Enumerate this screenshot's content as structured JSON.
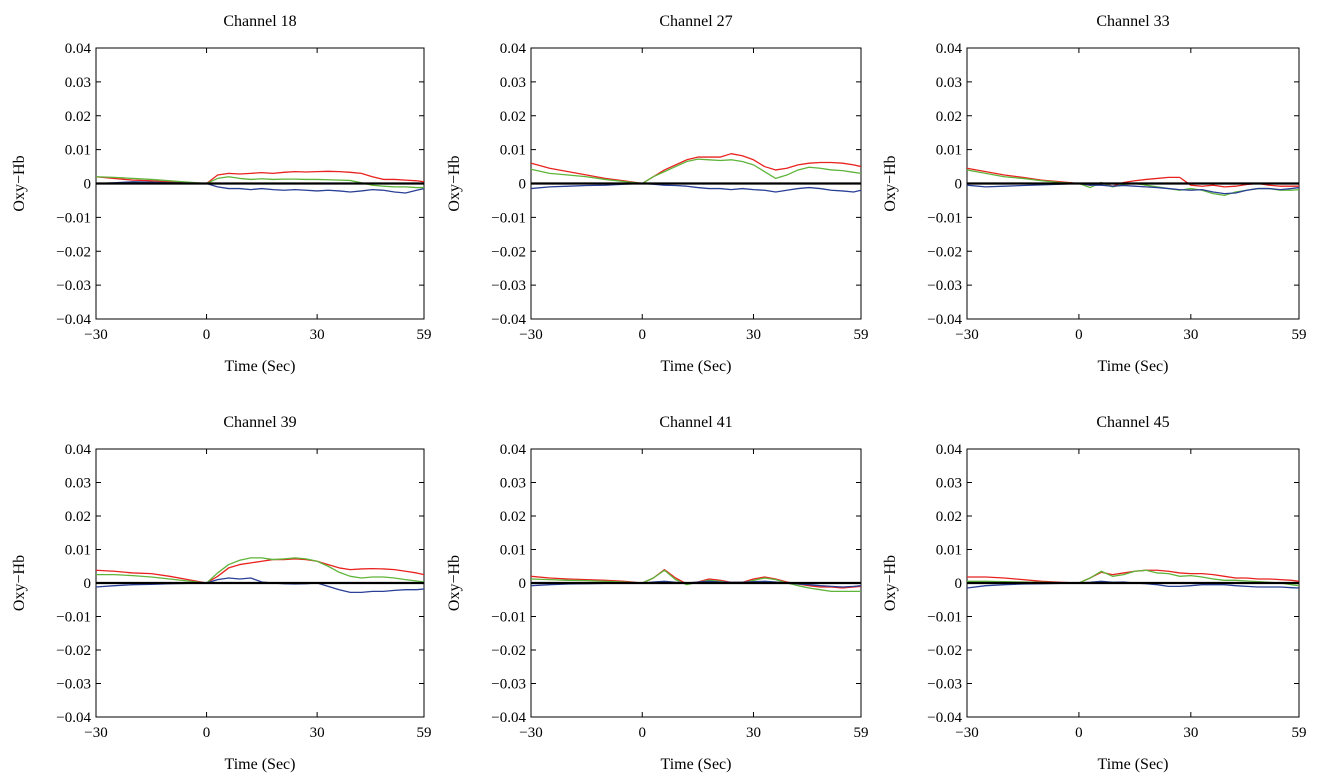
{
  "colors": {
    "red": "#e8231f",
    "green": "#5fb43a",
    "blue": "#2a3f96",
    "zero_line": "#000000"
  },
  "chart_data": [
    {
      "type": "line",
      "title": "Channel 18",
      "xlabel": "Time (Sec)",
      "ylabel": "Oxy−Hb",
      "xlim": [
        -30,
        59
      ],
      "ylim": [
        -0.04,
        0.04
      ],
      "xticks": [
        -30,
        0,
        30,
        59
      ],
      "xtick_labels": [
        "−30",
        "0",
        "30",
        "59"
      ],
      "yticks": [
        0.04,
        0.03,
        0.02,
        0.01,
        0,
        -0.01,
        -0.02,
        -0.03,
        -0.04
      ],
      "ytick_labels": [
        "0.04",
        "0.03",
        "0.02",
        "0.01",
        "0",
        "−0.01",
        "−0.02",
        "−0.03",
        "−0.04"
      ],
      "x": [
        -30,
        -25,
        -20,
        -15,
        -10,
        -5,
        0,
        3,
        6,
        9,
        12,
        15,
        18,
        21,
        24,
        27,
        30,
        33,
        36,
        39,
        42,
        45,
        48,
        51,
        54,
        57,
        59
      ],
      "series": [
        {
          "color": "#e8231f",
          "values": [
            0.002,
            0.0015,
            0.001,
            0.0008,
            0.0005,
            0.0003,
            0,
            0.0025,
            0.003,
            0.0028,
            0.003,
            0.0032,
            0.003,
            0.0033,
            0.0035,
            0.0034,
            0.0035,
            0.0036,
            0.0035,
            0.0033,
            0.003,
            0.002,
            0.0012,
            0.0012,
            0.001,
            0.0008,
            0.0005
          ]
        },
        {
          "color": "#5fb43a",
          "values": [
            0.002,
            0.0018,
            0.0015,
            0.0012,
            0.0008,
            0.0004,
            0,
            0.0015,
            0.002,
            0.0015,
            0.0012,
            0.0014,
            0.0012,
            0.0013,
            0.0013,
            0.0012,
            0.0012,
            0.0011,
            0.001,
            0.0009,
            0.0002,
            -0.0005,
            -0.0008,
            -0.001,
            -0.001,
            -0.0012,
            -0.0012
          ]
        },
        {
          "color": "#2a3f96",
          "values": [
            0,
            0.0002,
            0.0005,
            0.0004,
            0.0002,
            0.0001,
            0,
            -0.001,
            -0.0015,
            -0.0015,
            -0.0018,
            -0.0015,
            -0.0018,
            -0.002,
            -0.0018,
            -0.002,
            -0.0022,
            -0.002,
            -0.0022,
            -0.0025,
            -0.0022,
            -0.0018,
            -0.002,
            -0.0025,
            -0.0028,
            -0.002,
            -0.0015
          ]
        }
      ]
    },
    {
      "type": "line",
      "title": "Channel 27",
      "xlabel": "Time (Sec)",
      "ylabel": "Oxy−Hb",
      "xlim": [
        -30,
        59
      ],
      "ylim": [
        -0.04,
        0.04
      ],
      "xticks": [
        -30,
        0,
        30,
        59
      ],
      "xtick_labels": [
        "−30",
        "0",
        "30",
        "59"
      ],
      "yticks": [
        0.04,
        0.03,
        0.02,
        0.01,
        0,
        -0.01,
        -0.02,
        -0.03,
        -0.04
      ],
      "ytick_labels": [
        "0.04",
        "0.03",
        "0.02",
        "0.01",
        "0",
        "−0.01",
        "−0.02",
        "−0.03",
        "−0.04"
      ],
      "x": [
        -30,
        -25,
        -20,
        -15,
        -10,
        -5,
        0,
        3,
        6,
        9,
        12,
        15,
        18,
        21,
        24,
        27,
        30,
        33,
        36,
        39,
        42,
        45,
        48,
        51,
        54,
        57,
        59
      ],
      "series": [
        {
          "color": "#e8231f",
          "values": [
            0.006,
            0.0045,
            0.0035,
            0.0025,
            0.0015,
            0.0008,
            0,
            0.002,
            0.004,
            0.0055,
            0.007,
            0.0078,
            0.0078,
            0.0078,
            0.0088,
            0.0082,
            0.007,
            0.005,
            0.004,
            0.0045,
            0.0055,
            0.006,
            0.0062,
            0.0062,
            0.006,
            0.0055,
            0.005
          ]
        },
        {
          "color": "#5fb43a",
          "values": [
            0.0042,
            0.003,
            0.0025,
            0.002,
            0.0012,
            0.0006,
            0,
            0.002,
            0.0035,
            0.005,
            0.0065,
            0.0072,
            0.007,
            0.0068,
            0.007,
            0.0065,
            0.0055,
            0.0035,
            0.0015,
            0.0025,
            0.004,
            0.0048,
            0.0045,
            0.004,
            0.0038,
            0.0033,
            0.003
          ]
        },
        {
          "color": "#2a3f96",
          "values": [
            -0.0015,
            -0.001,
            -0.0008,
            -0.0006,
            -0.0005,
            -0.0002,
            0,
            -0.0002,
            -0.0005,
            -0.0006,
            -0.0008,
            -0.0012,
            -0.0015,
            -0.0015,
            -0.0018,
            -0.0015,
            -0.0018,
            -0.002,
            -0.0025,
            -0.002,
            -0.0015,
            -0.0012,
            -0.0015,
            -0.002,
            -0.0022,
            -0.0025,
            -0.002
          ]
        }
      ]
    },
    {
      "type": "line",
      "title": "Channel 33",
      "xlabel": "Time (Sec)",
      "ylabel": "Oxy−Hb",
      "xlim": [
        -30,
        59
      ],
      "ylim": [
        -0.04,
        0.04
      ],
      "xticks": [
        -30,
        0,
        30,
        59
      ],
      "xtick_labels": [
        "−30",
        "0",
        "30",
        "59"
      ],
      "yticks": [
        0.04,
        0.03,
        0.02,
        0.01,
        0,
        -0.01,
        -0.02,
        -0.03,
        -0.04
      ],
      "ytick_labels": [
        "0.04",
        "0.03",
        "0.02",
        "0.01",
        "0",
        "−0.01",
        "−0.02",
        "−0.03",
        "−0.04"
      ],
      "x": [
        -30,
        -25,
        -20,
        -15,
        -10,
        -5,
        0,
        3,
        6,
        9,
        12,
        15,
        18,
        21,
        24,
        27,
        30,
        33,
        36,
        39,
        42,
        45,
        48,
        51,
        54,
        57,
        59
      ],
      "series": [
        {
          "color": "#e8231f",
          "values": [
            0.0045,
            0.0035,
            0.0025,
            0.0018,
            0.001,
            0.0005,
            0,
            -0.0005,
            0.0002,
            -0.0008,
            0.0003,
            0.0008,
            0.0012,
            0.0015,
            0.0018,
            0.0018,
            -0.0005,
            -0.0008,
            -0.0005,
            -0.001,
            -0.0008,
            -0.0003,
            0,
            -0.0005,
            -0.0008,
            -0.0008,
            -0.0008
          ]
        },
        {
          "color": "#5fb43a",
          "values": [
            0.004,
            0.003,
            0.002,
            0.0015,
            0.0008,
            0.0003,
            0,
            -0.0012,
            0.0003,
            -0.001,
            -0.0003,
            0,
            -0.0005,
            -0.001,
            -0.0015,
            -0.002,
            -0.0015,
            -0.002,
            -0.003,
            -0.0035,
            -0.0025,
            -0.002,
            -0.0015,
            -0.0015,
            -0.002,
            -0.002,
            -0.0018
          ]
        },
        {
          "color": "#2a3f96",
          "values": [
            -0.0005,
            -0.001,
            -0.0008,
            -0.0006,
            -0.0004,
            -0.0002,
            0,
            -0.0005,
            -0.0005,
            -0.0008,
            -0.0006,
            -0.0008,
            -0.001,
            -0.0012,
            -0.0015,
            -0.0018,
            -0.002,
            -0.0018,
            -0.0025,
            -0.003,
            -0.0028,
            -0.002,
            -0.0015,
            -0.0015,
            -0.0018,
            -0.0015,
            -0.0012
          ]
        }
      ]
    },
    {
      "type": "line",
      "title": "Channel 39",
      "xlabel": "Time (Sec)",
      "ylabel": "Oxy−Hb",
      "xlim": [
        -30,
        59
      ],
      "ylim": [
        -0.04,
        0.04
      ],
      "xticks": [
        -30,
        0,
        30,
        59
      ],
      "xtick_labels": [
        "−30",
        "0",
        "30",
        "59"
      ],
      "yticks": [
        0.04,
        0.03,
        0.02,
        0.01,
        0,
        -0.01,
        -0.02,
        -0.03,
        -0.04
      ],
      "ytick_labels": [
        "0.04",
        "0.03",
        "0.02",
        "0.01",
        "0",
        "−0.01",
        "−0.02",
        "−0.03",
        "−0.04"
      ],
      "x": [
        -30,
        -25,
        -20,
        -15,
        -10,
        -5,
        0,
        3,
        6,
        9,
        12,
        15,
        18,
        21,
        24,
        27,
        30,
        33,
        36,
        39,
        42,
        45,
        48,
        51,
        54,
        57,
        59
      ],
      "series": [
        {
          "color": "#e8231f",
          "values": [
            0.0038,
            0.0035,
            0.003,
            0.0028,
            0.002,
            0.001,
            0,
            0.002,
            0.0045,
            0.0055,
            0.006,
            0.0065,
            0.007,
            0.007,
            0.0072,
            0.007,
            0.0065,
            0.0055,
            0.0045,
            0.004,
            0.0042,
            0.0043,
            0.0042,
            0.004,
            0.0035,
            0.003,
            0.0025
          ]
        },
        {
          "color": "#5fb43a",
          "values": [
            0.0025,
            0.0025,
            0.0022,
            0.0018,
            0.0012,
            0.0006,
            0,
            0.003,
            0.0055,
            0.0068,
            0.0075,
            0.0075,
            0.007,
            0.0072,
            0.0075,
            0.0072,
            0.0065,
            0.005,
            0.0032,
            0.002,
            0.0015,
            0.0018,
            0.0018,
            0.0015,
            0.001,
            0.0006,
            0.0003
          ]
        },
        {
          "color": "#2a3f96",
          "values": [
            -0.0012,
            -0.0008,
            -0.0005,
            -0.0004,
            -0.0002,
            -0.0001,
            0,
            0.001,
            0.0015,
            0.0012,
            0.0015,
            0.0003,
            0,
            -0.0002,
            -0.0003,
            -0.0002,
            0,
            -0.001,
            -0.002,
            -0.0028,
            -0.0028,
            -0.0025,
            -0.0025,
            -0.0022,
            -0.002,
            -0.002,
            -0.0018
          ]
        }
      ]
    },
    {
      "type": "line",
      "title": "Channel 41",
      "xlabel": "Time (Sec)",
      "ylabel": "Oxy−Hb",
      "xlim": [
        -30,
        59
      ],
      "ylim": [
        -0.04,
        0.04
      ],
      "xticks": [
        -30,
        0,
        30,
        59
      ],
      "xtick_labels": [
        "−30",
        "0",
        "30",
        "59"
      ],
      "yticks": [
        0.04,
        0.03,
        0.02,
        0.01,
        0,
        -0.01,
        -0.02,
        -0.03,
        -0.04
      ],
      "ytick_labels": [
        "0.04",
        "0.03",
        "0.02",
        "0.01",
        "0",
        "−0.01",
        "−0.02",
        "−0.03",
        "−0.04"
      ],
      "x": [
        -30,
        -25,
        -20,
        -15,
        -10,
        -5,
        0,
        3,
        6,
        9,
        12,
        15,
        18,
        21,
        24,
        27,
        30,
        33,
        36,
        39,
        42,
        45,
        48,
        51,
        54,
        57,
        59
      ],
      "series": [
        {
          "color": "#e8231f",
          "values": [
            0.002,
            0.0015,
            0.0012,
            0.001,
            0.0008,
            0.0005,
            0,
            0.0015,
            0.004,
            0.0015,
            -0.0003,
            0.0003,
            0.0012,
            0.0008,
            0.0002,
            0.0002,
            0.0012,
            0.0018,
            0.0012,
            0.0003,
            -0.0003,
            -0.0008,
            -0.0012,
            -0.0012,
            -0.0015,
            -0.0012,
            -0.001
          ]
        },
        {
          "color": "#5fb43a",
          "values": [
            0.0012,
            0.001,
            0.0008,
            0.0007,
            0.0005,
            0.0003,
            0,
            0.0015,
            0.0038,
            0.001,
            -0.0005,
            0.0002,
            0.0008,
            0.0005,
            0,
            0,
            0.0008,
            0.0015,
            0.001,
            0,
            -0.0008,
            -0.0015,
            -0.002,
            -0.0025,
            -0.0025,
            -0.0025,
            -0.0025
          ]
        },
        {
          "color": "#2a3f96",
          "values": [
            -0.0008,
            -0.0005,
            -0.0003,
            -0.0002,
            -0.0001,
            0,
            0,
            0.0003,
            0.0005,
            0.0002,
            0,
            0.0003,
            0.0005,
            0.0003,
            0.0002,
            0.0002,
            0.0004,
            0.0005,
            0.0003,
            0,
            -0.0003,
            -0.0005,
            -0.0008,
            -0.001,
            -0.0012,
            -0.001,
            -0.0008
          ]
        }
      ]
    },
    {
      "type": "line",
      "title": "Channel 45",
      "xlabel": "Time (Sec)",
      "ylabel": "Oxy−Hb",
      "xlim": [
        -30,
        59
      ],
      "ylim": [
        -0.04,
        0.04
      ],
      "xticks": [
        -30,
        0,
        30,
        59
      ],
      "xtick_labels": [
        "−30",
        "0",
        "30",
        "59"
      ],
      "yticks": [
        0.04,
        0.03,
        0.02,
        0.01,
        0,
        -0.01,
        -0.02,
        -0.03,
        -0.04
      ],
      "ytick_labels": [
        "0.04",
        "0.03",
        "0.02",
        "0.01",
        "0",
        "−0.01",
        "−0.02",
        "−0.03",
        "−0.04"
      ],
      "x": [
        -30,
        -25,
        -20,
        -15,
        -10,
        -5,
        0,
        3,
        6,
        9,
        12,
        15,
        18,
        21,
        24,
        27,
        30,
        33,
        36,
        39,
        42,
        45,
        48,
        51,
        54,
        57,
        59
      ],
      "series": [
        {
          "color": "#e8231f",
          "values": [
            0.0018,
            0.0018,
            0.0015,
            0.001,
            0.0005,
            0.0002,
            0,
            0.0015,
            0.0032,
            0.0025,
            0.003,
            0.0035,
            0.0038,
            0.0038,
            0.0035,
            0.003,
            0.0028,
            0.0028,
            0.0025,
            0.002,
            0.0015,
            0.0015,
            0.0012,
            0.0012,
            0.001,
            0.0008,
            0.0005
          ]
        },
        {
          "color": "#5fb43a",
          "values": [
            0.0005,
            0.0005,
            0.0004,
            0.0003,
            0.0002,
            0.0001,
            0,
            0.0015,
            0.0035,
            0.002,
            0.0025,
            0.0035,
            0.0038,
            0.003,
            0.0028,
            0.002,
            0.0022,
            0.0018,
            0.0012,
            0.0008,
            0.0008,
            0.0006,
            0.0004,
            0.0002,
            0,
            -0.0005,
            -0.0008
          ]
        },
        {
          "color": "#2a3f96",
          "values": [
            -0.0015,
            -0.0008,
            -0.0005,
            -0.0003,
            -0.0002,
            -0.0001,
            0,
            0.0002,
            0.0005,
            0.0002,
            0.0003,
            0,
            -0.0002,
            -0.0005,
            -0.001,
            -0.001,
            -0.0008,
            -0.0005,
            -0.0005,
            -0.0005,
            -0.0008,
            -0.001,
            -0.0012,
            -0.0012,
            -0.0012,
            -0.0014,
            -0.0015
          ]
        }
      ]
    }
  ]
}
